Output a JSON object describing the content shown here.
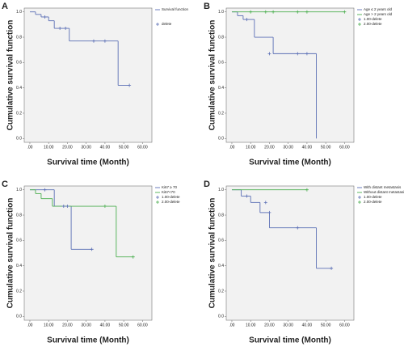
{
  "chart_data": [
    {
      "type": "step",
      "panel": "A",
      "xlabel": "Survival time (Month)",
      "ylabel": "Cumulative survival function",
      "xlim": [
        -3,
        65
      ],
      "ylim": [
        -0.03,
        1.03
      ],
      "xticks": [
        {
          "value": 0,
          "label": ".00"
        },
        {
          "value": 10,
          "label": "10.00"
        },
        {
          "value": 20,
          "label": "20.00"
        },
        {
          "value": 30,
          "label": "30.00"
        },
        {
          "value": 40,
          "label": "40.00"
        },
        {
          "value": 50,
          "label": "50.00"
        },
        {
          "value": 60,
          "label": "60.00"
        }
      ],
      "yticks": [
        {
          "value": 0,
          "label": "0.0"
        },
        {
          "value": 0.2,
          "label": "0.2"
        },
        {
          "value": 0.4,
          "label": "0.4"
        },
        {
          "value": 0.6,
          "label": "0.6"
        },
        {
          "value": 0.8,
          "label": "0.8"
        },
        {
          "value": 1,
          "label": "1.0"
        }
      ],
      "series": [
        {
          "name": "Survival function",
          "color": "#5b6fb5",
          "marker": "line",
          "x": [
            0,
            3,
            6,
            10,
            13,
            21,
            47,
            53
          ],
          "values": [
            1.0,
            0.98,
            0.96,
            0.93,
            0.87,
            0.77,
            0.42,
            0.42
          ]
        },
        {
          "name": "delete",
          "color": "#5b6fb5",
          "marker": "plus",
          "x": [
            8,
            16,
            19,
            34,
            40,
            53
          ],
          "values": [
            0.96,
            0.87,
            0.87,
            0.77,
            0.77,
            0.42
          ]
        }
      ]
    },
    {
      "type": "step",
      "panel": "B",
      "xlabel": "Survival time (Month)",
      "ylabel": "Cumulative survival function",
      "xlim": [
        -3,
        65
      ],
      "ylim": [
        -0.03,
        1.03
      ],
      "xticks": [
        {
          "value": 0,
          "label": ".00"
        },
        {
          "value": 10,
          "label": "10.00"
        },
        {
          "value": 20,
          "label": "20.00"
        },
        {
          "value": 30,
          "label": "30.00"
        },
        {
          "value": 40,
          "label": "40.00"
        },
        {
          "value": 50,
          "label": "50.00"
        },
        {
          "value": 60,
          "label": "60.00"
        }
      ],
      "yticks": [
        {
          "value": 0,
          "label": "0.0"
        },
        {
          "value": 0.2,
          "label": "0.2"
        },
        {
          "value": 0.4,
          "label": "0.4"
        },
        {
          "value": 0.6,
          "label": "0.6"
        },
        {
          "value": 0.8,
          "label": "0.8"
        },
        {
          "value": 1,
          "label": "1.0"
        }
      ],
      "series": [
        {
          "name": "Age ≤ 2 years old",
          "color": "#5b6fb5",
          "marker": "line",
          "x": [
            0,
            3,
            6,
            12,
            22,
            45
          ],
          "values": [
            1.0,
            0.97,
            0.94,
            0.8,
            0.67,
            0.0
          ]
        },
        {
          "name": "Age > 2 years old",
          "color": "#4caf50",
          "marker": "line",
          "x": [
            0,
            60
          ],
          "values": [
            1.0,
            1.0
          ]
        },
        {
          "name": "1.00-delete",
          "color": "#5b6fb5",
          "marker": "plus",
          "x": [
            8,
            20,
            35,
            40
          ],
          "values": [
            0.94,
            0.67,
            0.67,
            0.67
          ]
        },
        {
          "name": "2.00-delete",
          "color": "#4caf50",
          "marker": "plus",
          "x": [
            10,
            18,
            22,
            35,
            40,
            60
          ],
          "values": [
            1.0,
            1.0,
            1.0,
            1.0,
            1.0,
            1.0
          ]
        }
      ]
    },
    {
      "type": "step",
      "panel": "C",
      "xlabel": "Survival time (Month)",
      "ylabel": "Cumulative survival function",
      "xlim": [
        -3,
        65
      ],
      "ylim": [
        -0.03,
        1.03
      ],
      "xticks": [
        {
          "value": 0,
          "label": ".00"
        },
        {
          "value": 10,
          "label": "10.00"
        },
        {
          "value": 20,
          "label": "20.00"
        },
        {
          "value": 30,
          "label": "30.00"
        },
        {
          "value": 40,
          "label": "40.00"
        },
        {
          "value": 50,
          "label": "50.00"
        },
        {
          "value": 60,
          "label": "60.00"
        }
      ],
      "yticks": [
        {
          "value": 0,
          "label": "0.0"
        },
        {
          "value": 0.2,
          "label": "0.2"
        },
        {
          "value": 0.4,
          "label": "0.4"
        },
        {
          "value": 0.6,
          "label": "0.6"
        },
        {
          "value": 0.8,
          "label": "0.8"
        },
        {
          "value": 1,
          "label": "1.0"
        }
      ],
      "series": [
        {
          "name": "Ki67 ≥ 70",
          "color": "#5b6fb5",
          "marker": "line",
          "x": [
            0,
            13,
            22,
            33
          ],
          "values": [
            1.0,
            0.87,
            0.53,
            0.53
          ]
        },
        {
          "name": "Ki67<70",
          "color": "#4caf50",
          "marker": "line",
          "x": [
            0,
            3,
            6,
            12,
            46,
            55
          ],
          "values": [
            1.0,
            0.97,
            0.93,
            0.87,
            0.47,
            0.47
          ]
        },
        {
          "name": "1.00-delete",
          "color": "#5b6fb5",
          "marker": "plus",
          "x": [
            8,
            18,
            20,
            33
          ],
          "values": [
            1.0,
            0.87,
            0.87,
            0.53
          ]
        },
        {
          "name": "2.00-delete",
          "color": "#4caf50",
          "marker": "plus",
          "x": [
            40,
            55
          ],
          "values": [
            0.87,
            0.47
          ]
        }
      ]
    },
    {
      "type": "step",
      "panel": "D",
      "xlabel": "Survival time (Month)",
      "ylabel": "Cumulative survival function",
      "xlim": [
        -3,
        65
      ],
      "ylim": [
        -0.03,
        1.03
      ],
      "xticks": [
        {
          "value": 0,
          "label": ".00"
        },
        {
          "value": 10,
          "label": "10.00"
        },
        {
          "value": 20,
          "label": "20.00"
        },
        {
          "value": 30,
          "label": "30.00"
        },
        {
          "value": 40,
          "label": "40.00"
        },
        {
          "value": 50,
          "label": "50.00"
        },
        {
          "value": 60,
          "label": "60.00"
        }
      ],
      "yticks": [
        {
          "value": 0,
          "label": "0.0"
        },
        {
          "value": 0.2,
          "label": "0.2"
        },
        {
          "value": 0.4,
          "label": "0.4"
        },
        {
          "value": 0.6,
          "label": "0.6"
        },
        {
          "value": 0.8,
          "label": "0.8"
        },
        {
          "value": 1,
          "label": "1.0"
        }
      ],
      "series": [
        {
          "name": "With distant metastasis",
          "color": "#5b6fb5",
          "marker": "line",
          "x": [
            0,
            5,
            10,
            15,
            20,
            45,
            53
          ],
          "values": [
            1.0,
            0.95,
            0.9,
            0.82,
            0.7,
            0.38,
            0.38
          ]
        },
        {
          "name": "Without distant metastasis",
          "color": "#4caf50",
          "marker": "line",
          "x": [
            0,
            40
          ],
          "values": [
            1.0,
            1.0
          ]
        },
        {
          "name": "1.00-delete",
          "color": "#5b6fb5",
          "marker": "plus",
          "x": [
            8,
            18,
            20,
            35,
            53
          ],
          "values": [
            0.95,
            0.9,
            0.82,
            0.7,
            0.38
          ]
        },
        {
          "name": "2.00-delete",
          "color": "#4caf50",
          "marker": "plus",
          "x": [
            40
          ],
          "values": [
            1.0
          ]
        }
      ]
    }
  ]
}
